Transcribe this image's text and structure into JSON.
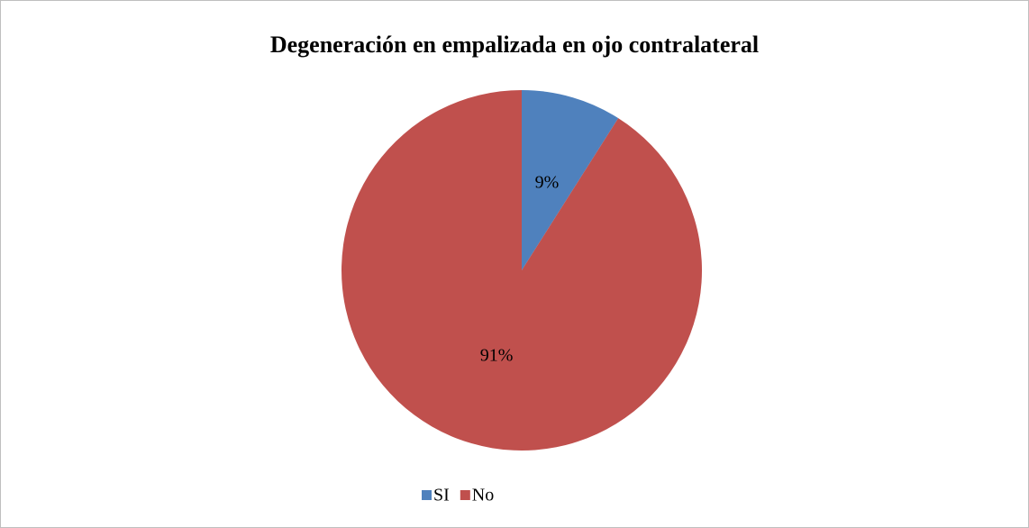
{
  "chart_data": {
    "type": "pie",
    "title": "Degeneración en empalizada en ojo contralateral",
    "categories": [
      "SI",
      "No"
    ],
    "values": [
      9,
      91
    ],
    "value_labels": [
      "9%",
      "91%"
    ],
    "colors": [
      "#4f81bd",
      "#c0504d"
    ],
    "legend": "bottom"
  }
}
